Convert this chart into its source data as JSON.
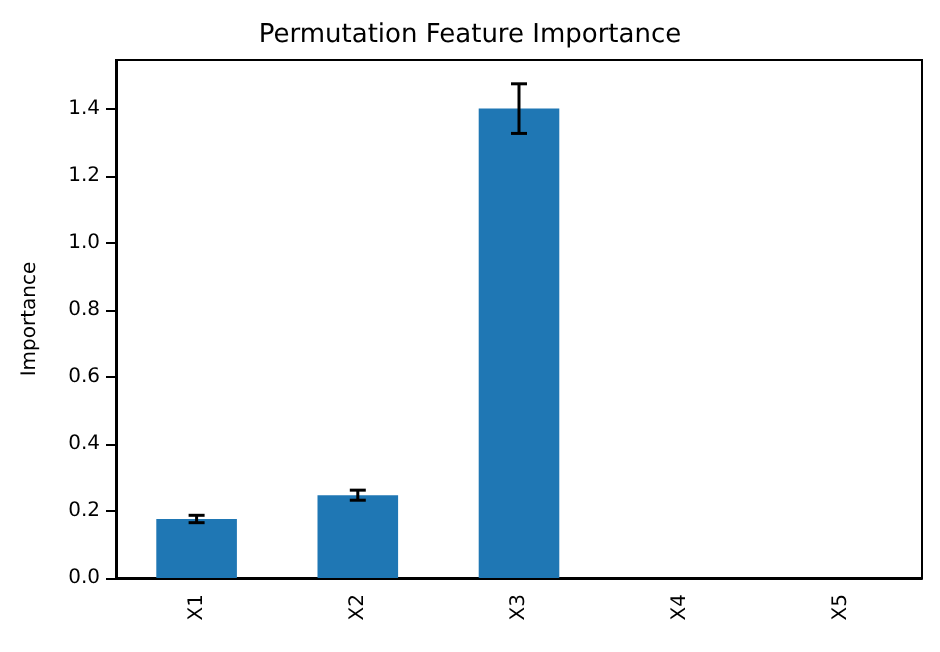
{
  "chart_data": {
    "type": "bar",
    "title": "Permutation Feature Importance",
    "ylabel": "Importance",
    "categories": [
      "X1",
      "X2",
      "X3",
      "X4",
      "X5"
    ],
    "values": [
      0.176,
      0.247,
      1.4,
      0,
      0
    ],
    "errors": [
      0.011,
      0.015,
      0.074,
      null,
      null
    ],
    "color": "#1f77b4",
    "ylim": [
      0,
      1.545
    ],
    "yticks": [
      {
        "value": 0,
        "label": "0.0"
      },
      0.2,
      0.4,
      0.6,
      0.8,
      {
        "value": 1,
        "label": "1.0"
      },
      1.2,
      1.4
    ],
    "grid": false
  }
}
